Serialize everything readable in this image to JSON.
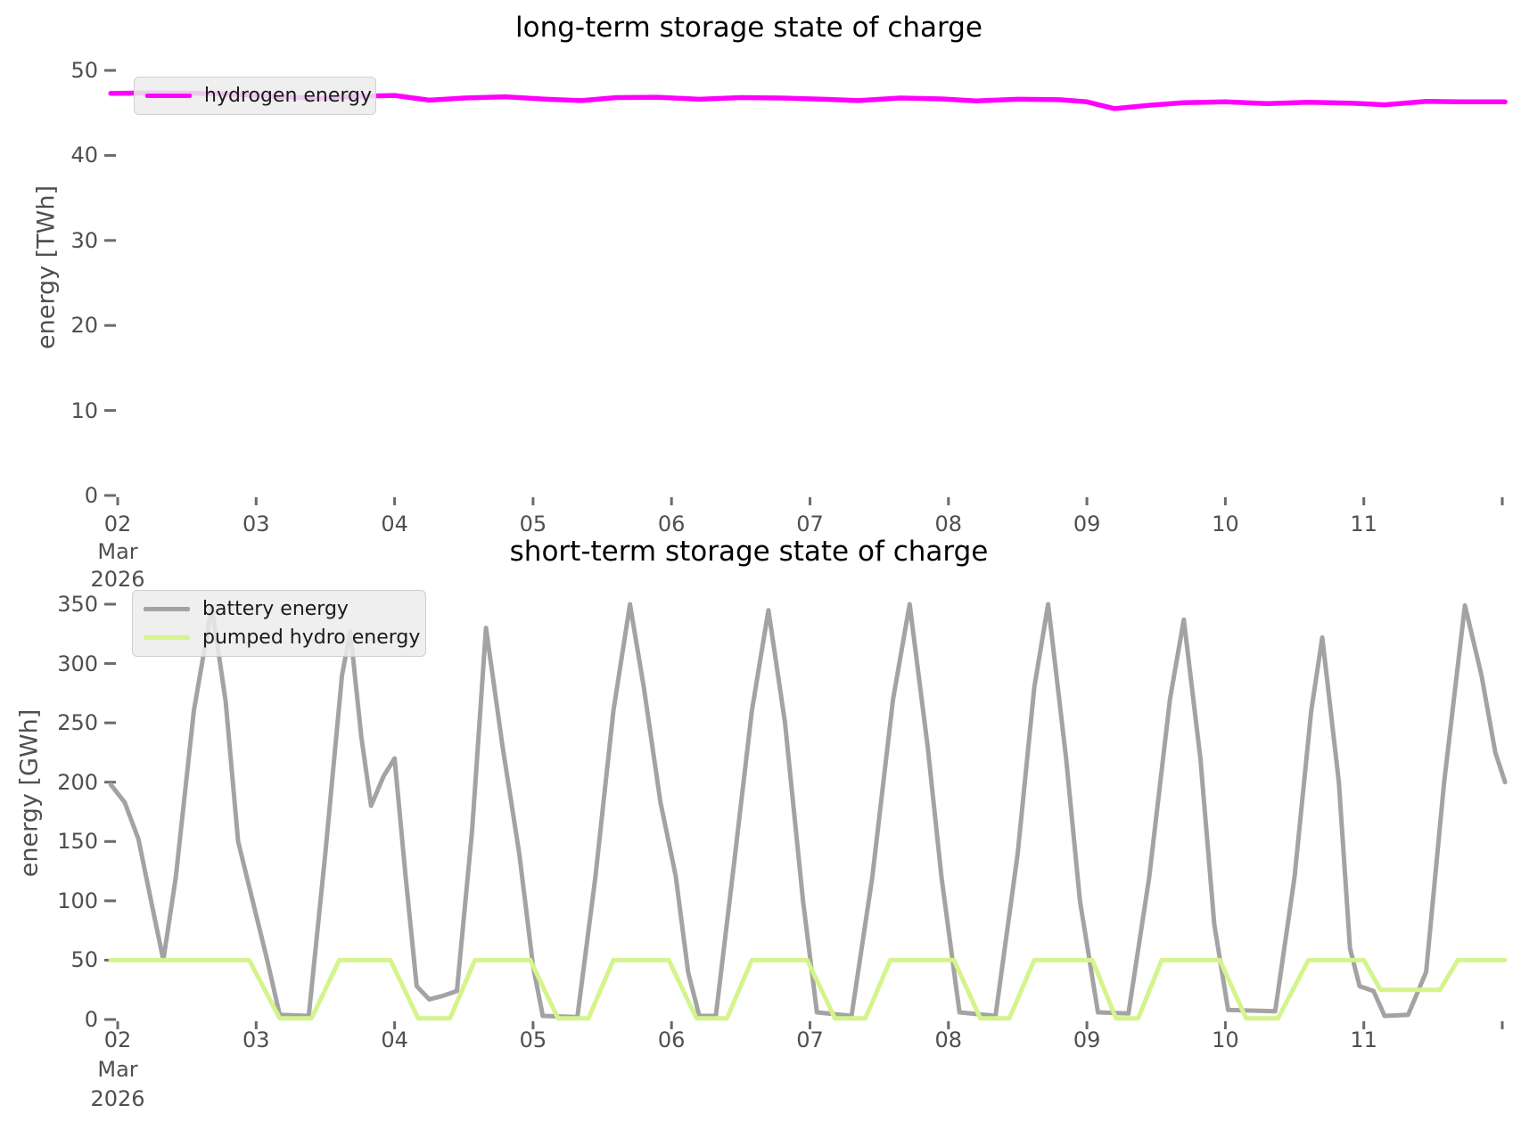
{
  "page": {
    "background": "#ffffff"
  },
  "chart_data": [
    {
      "type": "line",
      "title": "long-term storage state of charge",
      "ylabel": "energy [TWh]",
      "xlabel": "",
      "x_start_label": [
        "02",
        "Mar",
        "2026"
      ],
      "ylim": [
        0,
        50
      ],
      "xlim": [
        1.95,
        12.02
      ],
      "grid": false,
      "legend_position": "upper left",
      "yticks": [
        0,
        10,
        20,
        30,
        40,
        50
      ],
      "xticks": [
        {
          "x": 2,
          "label": "02",
          "sub": [
            "Mar",
            "2026"
          ]
        },
        {
          "x": 3,
          "label": "03"
        },
        {
          "x": 4,
          "label": "04"
        },
        {
          "x": 5,
          "label": "05"
        },
        {
          "x": 6,
          "label": "06"
        },
        {
          "x": 7,
          "label": "07"
        },
        {
          "x": 8,
          "label": "08"
        },
        {
          "x": 9,
          "label": "09"
        },
        {
          "x": 10,
          "label": "10"
        },
        {
          "x": 11,
          "label": "11"
        },
        {
          "x": 12,
          "label": ""
        }
      ],
      "series": [
        {
          "name": "hydrogen energy",
          "color": "#ff00ff",
          "width": 5.5,
          "points": [
            [
              1.95,
              47.3
            ],
            [
              2.3,
              47.35
            ],
            [
              2.6,
              47.3
            ],
            [
              2.9,
              47.15
            ],
            [
              3.2,
              46.9
            ],
            [
              3.45,
              46.7
            ],
            [
              3.7,
              46.95
            ],
            [
              4.0,
              47.05
            ],
            [
              4.25,
              46.5
            ],
            [
              4.5,
              46.75
            ],
            [
              4.8,
              46.9
            ],
            [
              5.1,
              46.6
            ],
            [
              5.35,
              46.45
            ],
            [
              5.6,
              46.8
            ],
            [
              5.9,
              46.85
            ],
            [
              6.2,
              46.6
            ],
            [
              6.5,
              46.8
            ],
            [
              6.8,
              46.75
            ],
            [
              7.1,
              46.6
            ],
            [
              7.35,
              46.45
            ],
            [
              7.65,
              46.75
            ],
            [
              7.95,
              46.65
            ],
            [
              8.2,
              46.4
            ],
            [
              8.5,
              46.6
            ],
            [
              8.8,
              46.55
            ],
            [
              9.0,
              46.3
            ],
            [
              9.2,
              45.5
            ],
            [
              9.45,
              45.9
            ],
            [
              9.7,
              46.2
            ],
            [
              10.0,
              46.3
            ],
            [
              10.3,
              46.1
            ],
            [
              10.6,
              46.25
            ],
            [
              10.9,
              46.15
            ],
            [
              11.15,
              45.95
            ],
            [
              11.45,
              46.35
            ],
            [
              11.7,
              46.3
            ],
            [
              12.02,
              46.3
            ]
          ]
        }
      ]
    },
    {
      "type": "line",
      "title": "short-term storage state of charge",
      "ylabel": "energy [GWh]",
      "xlabel": "",
      "x_start_label": [
        "02",
        "Mar",
        "2026"
      ],
      "ylim": [
        0,
        350
      ],
      "xlim": [
        1.95,
        12.02
      ],
      "grid": false,
      "legend_position": "upper left",
      "yticks": [
        0,
        50,
        100,
        150,
        200,
        250,
        300,
        350
      ],
      "xticks": [
        {
          "x": 2,
          "label": "02",
          "sub": [
            "Mar",
            "2026"
          ]
        },
        {
          "x": 3,
          "label": "03"
        },
        {
          "x": 4,
          "label": "04"
        },
        {
          "x": 5,
          "label": "05"
        },
        {
          "x": 6,
          "label": "06"
        },
        {
          "x": 7,
          "label": "07"
        },
        {
          "x": 8,
          "label": "08"
        },
        {
          "x": 9,
          "label": "09"
        },
        {
          "x": 10,
          "label": "10"
        },
        {
          "x": 11,
          "label": "11"
        },
        {
          "x": 12,
          "label": ""
        }
      ],
      "series": [
        {
          "name": "battery energy",
          "color": "#a3a3a3",
          "width": 5,
          "points": [
            [
              1.95,
              198
            ],
            [
              2.05,
              183
            ],
            [
              2.15,
              152
            ],
            [
              2.25,
              95
            ],
            [
              2.33,
              50
            ],
            [
              2.42,
              120
            ],
            [
              2.55,
              260
            ],
            [
              2.68,
              348
            ],
            [
              2.78,
              268
            ],
            [
              2.87,
              150
            ],
            [
              3.0,
              88
            ],
            [
              3.08,
              50
            ],
            [
              3.17,
              4
            ],
            [
              3.38,
              3
            ],
            [
              3.5,
              140
            ],
            [
              3.62,
              290
            ],
            [
              3.68,
              327
            ],
            [
              3.76,
              238
            ],
            [
              3.83,
              180
            ],
            [
              3.92,
              205
            ],
            [
              4.0,
              220
            ],
            [
              4.08,
              120
            ],
            [
              4.16,
              28
            ],
            [
              4.25,
              17
            ],
            [
              4.35,
              20
            ],
            [
              4.45,
              24
            ],
            [
              4.56,
              160
            ],
            [
              4.66,
              330
            ],
            [
              4.78,
              230
            ],
            [
              4.9,
              140
            ],
            [
              5.0,
              45
            ],
            [
              5.07,
              3
            ],
            [
              5.32,
              2
            ],
            [
              5.45,
              120
            ],
            [
              5.58,
              260
            ],
            [
              5.7,
              350
            ],
            [
              5.8,
              280
            ],
            [
              5.92,
              183
            ],
            [
              6.03,
              121
            ],
            [
              6.12,
              40
            ],
            [
              6.2,
              3
            ],
            [
              6.32,
              3
            ],
            [
              6.45,
              130
            ],
            [
              6.58,
              260
            ],
            [
              6.7,
              345
            ],
            [
              6.82,
              250
            ],
            [
              6.95,
              100
            ],
            [
              7.05,
              6
            ],
            [
              7.3,
              3
            ],
            [
              7.45,
              120
            ],
            [
              7.6,
              270
            ],
            [
              7.72,
              350
            ],
            [
              7.85,
              230
            ],
            [
              7.95,
              120
            ],
            [
              8.08,
              6
            ],
            [
              8.34,
              3
            ],
            [
              8.5,
              140
            ],
            [
              8.62,
              280
            ],
            [
              8.72,
              350
            ],
            [
              8.85,
              220
            ],
            [
              8.95,
              100
            ],
            [
              9.08,
              6
            ],
            [
              9.3,
              5
            ],
            [
              9.45,
              120
            ],
            [
              9.6,
              270
            ],
            [
              9.7,
              337
            ],
            [
              9.82,
              220
            ],
            [
              9.92,
              80
            ],
            [
              10.02,
              8
            ],
            [
              10.36,
              7
            ],
            [
              10.5,
              120
            ],
            [
              10.62,
              260
            ],
            [
              10.7,
              322
            ],
            [
              10.82,
              200
            ],
            [
              10.9,
              60
            ],
            [
              10.97,
              28
            ],
            [
              11.07,
              24
            ],
            [
              11.15,
              3
            ],
            [
              11.32,
              4
            ],
            [
              11.45,
              40
            ],
            [
              11.58,
              200
            ],
            [
              11.73,
              349
            ],
            [
              11.85,
              290
            ],
            [
              11.95,
              225
            ],
            [
              12.02,
              200
            ]
          ]
        },
        {
          "name": "pumped hydro energy",
          "color": "#d4f48c",
          "width": 5,
          "points": [
            [
              1.95,
              50
            ],
            [
              2.95,
              50
            ],
            [
              3.17,
              1
            ],
            [
              3.4,
              1
            ],
            [
              3.6,
              50
            ],
            [
              3.97,
              50
            ],
            [
              4.17,
              1
            ],
            [
              4.4,
              1
            ],
            [
              4.58,
              50
            ],
            [
              4.98,
              50
            ],
            [
              5.18,
              1
            ],
            [
              5.4,
              1
            ],
            [
              5.58,
              50
            ],
            [
              5.98,
              50
            ],
            [
              6.18,
              1
            ],
            [
              6.4,
              1
            ],
            [
              6.58,
              50
            ],
            [
              6.98,
              50
            ],
            [
              7.18,
              1
            ],
            [
              7.4,
              1
            ],
            [
              7.58,
              50
            ],
            [
              8.04,
              50
            ],
            [
              8.23,
              1
            ],
            [
              8.44,
              1
            ],
            [
              8.62,
              50
            ],
            [
              9.04,
              50
            ],
            [
              9.21,
              1
            ],
            [
              9.37,
              1
            ],
            [
              9.54,
              50
            ],
            [
              9.96,
              50
            ],
            [
              10.15,
              1
            ],
            [
              10.38,
              1
            ],
            [
              10.6,
              50
            ],
            [
              11.0,
              50
            ],
            [
              11.12,
              25
            ],
            [
              11.55,
              25
            ],
            [
              11.68,
              50
            ],
            [
              12.02,
              50
            ]
          ]
        }
      ]
    }
  ]
}
